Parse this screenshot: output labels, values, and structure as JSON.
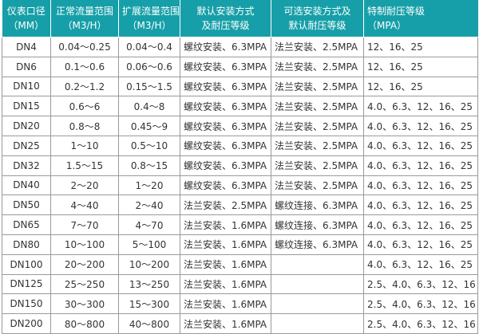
{
  "header_color": "#169fa8",
  "columns": [
    {
      "line1": "仪表口径",
      "line2": "（MM）"
    },
    {
      "line1": "正常流量范围",
      "line2": "（M3/H）"
    },
    {
      "line1": "扩展流量范围",
      "line2": "（M3/H）"
    },
    {
      "line1": "默认安装方式",
      "line2": "及耐压等级"
    },
    {
      "line1": "可选安装方式及",
      "line2": "默认耐压等级"
    },
    {
      "line1": "特制耐压等级",
      "line2": "（MPA）"
    }
  ],
  "rows": [
    [
      "DN4",
      "0.04～0.25",
      "0.04～0.4",
      "螺纹安装、6.3MPA",
      "法兰安装、2.5MPA",
      "12、16、25"
    ],
    [
      "DN6",
      "0.1～0.6",
      "0.06～0.6",
      "螺纹安装、6.3MPA",
      "法兰安装、2.5MPA",
      "12、16、25"
    ],
    [
      "DN10",
      "0.2～1.2",
      "0.15～1.5",
      "螺纹安装、6.3MPA",
      "法兰安装、2.5MPA",
      "12、16、25"
    ],
    [
      "DN15",
      "0.6～6",
      "0.4～8",
      "螺纹安装、6.3MPA",
      "法兰安装、2.5MPA",
      "4.0、6.3、12、16、25"
    ],
    [
      "DN20",
      "0.8～8",
      "0.45～9",
      "螺纹安装、6.3MPA",
      "法兰安装、2.5MPA",
      "4.0、6.3、12、16、25"
    ],
    [
      "DN25",
      "1～10",
      "0.5～10",
      "螺纹安装、6.3MPA",
      "法兰安装、2.5MPA",
      "4.0、6.3、12、16、25"
    ],
    [
      "DN32",
      "1.5～15",
      "0.8～15",
      "螺纹安装、6.3MPA",
      "法兰安装、2.5MPA",
      "4.0、6.3、12、16、25"
    ],
    [
      "DN40",
      "2～20",
      "1～20",
      "螺纹安装、6.3MPA",
      "法兰安装、2.5MPA",
      "4.0、6.3、12、16、25"
    ],
    [
      "DN50",
      "4～40",
      "2～40",
      "法兰安装、2.5MPA",
      "螺纹连接、6.3MPA",
      "4.0、6.3、12、16、25"
    ],
    [
      "DN65",
      "7～70",
      "4～70",
      "法兰安装、1.6MPA",
      "螺纹连接、6.3MPA",
      "4.0、6.3、12、16、25"
    ],
    [
      "DN80",
      "10～100",
      "5～100",
      "法兰安装、1.6MPA",
      "螺纹连接、6.3MPA",
      "4.0、6.3、12、16、25"
    ],
    [
      "DN100",
      "20～200",
      "10～200",
      "法兰安装、1.6MPA",
      "",
      "4.0、6.3、12、16、25"
    ],
    [
      "DN125",
      "25～250",
      "13～250",
      "法兰安装、1.6MPA",
      "",
      "2.5、4.0、6.3、12、16"
    ],
    [
      "DN150",
      "30～300",
      "15～300",
      "法兰安装、1.6MPA",
      "",
      "2.5、4.0、6.3、12、16"
    ],
    [
      "DN200",
      "80～800",
      "40～800",
      "法兰安装、1.6MPA",
      "",
      "2.5、4.0、6.3、12、16"
    ]
  ]
}
